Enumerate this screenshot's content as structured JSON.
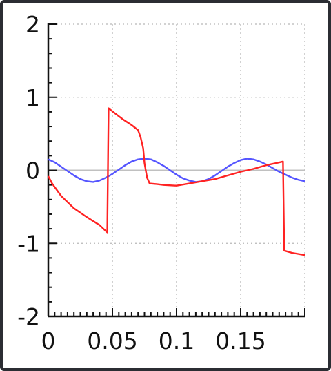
{
  "chart_data": {
    "type": "line",
    "title": "",
    "xlabel": "",
    "ylabel": "",
    "xlim": [
      0,
      0.2
    ],
    "ylim": [
      -2,
      2
    ],
    "grid": true,
    "legend": "none",
    "x_ticks": [
      0,
      0.05,
      0.1,
      0.15
    ],
    "x_tick_labels": [
      "0",
      "0.05",
      "0.1",
      "0.15"
    ],
    "y_ticks": [
      -2,
      -1,
      0,
      1,
      2
    ],
    "y_tick_labels": [
      "-2",
      "-1",
      "0",
      "1",
      "2"
    ],
    "reference_line": {
      "y": 0,
      "color": "#c0c0c0"
    },
    "series": [
      {
        "color": "#5555ff",
        "points": [
          [
            0,
            0.15
          ],
          [
            0.005,
            0.11
          ],
          [
            0.01,
            0.05
          ],
          [
            0.015,
            -0.01
          ],
          [
            0.02,
            -0.07
          ],
          [
            0.025,
            -0.12
          ],
          [
            0.03,
            -0.15
          ],
          [
            0.035,
            -0.16
          ],
          [
            0.04,
            -0.14
          ],
          [
            0.045,
            -0.1
          ],
          [
            0.05,
            -0.05
          ],
          [
            0.055,
            0.01
          ],
          [
            0.06,
            0.07
          ],
          [
            0.065,
            0.12
          ],
          [
            0.07,
            0.15
          ],
          [
            0.075,
            0.16
          ],
          [
            0.08,
            0.15
          ],
          [
            0.085,
            0.11
          ],
          [
            0.09,
            0.06
          ],
          [
            0.095,
            0.0
          ],
          [
            0.1,
            -0.06
          ],
          [
            0.105,
            -0.11
          ],
          [
            0.11,
            -0.14
          ],
          [
            0.115,
            -0.16
          ],
          [
            0.12,
            -0.15
          ],
          [
            0.125,
            -0.12
          ],
          [
            0.13,
            -0.07
          ],
          [
            0.135,
            -0.01
          ],
          [
            0.14,
            0.05
          ],
          [
            0.145,
            0.1
          ],
          [
            0.15,
            0.14
          ],
          [
            0.155,
            0.16
          ],
          [
            0.16,
            0.15
          ],
          [
            0.165,
            0.12
          ],
          [
            0.17,
            0.08
          ],
          [
            0.175,
            0.03
          ],
          [
            0.18,
            -0.02
          ],
          [
            0.185,
            -0.06
          ],
          [
            0.19,
            -0.1
          ],
          [
            0.195,
            -0.13
          ],
          [
            0.2,
            -0.15
          ]
        ]
      },
      {
        "color": "#ff2222",
        "points": [
          [
            0,
            -0.08
          ],
          [
            0.003,
            -0.18
          ],
          [
            0.01,
            -0.35
          ],
          [
            0.02,
            -0.52
          ],
          [
            0.03,
            -0.64
          ],
          [
            0.04,
            -0.75
          ],
          [
            0.046,
            -0.85
          ],
          [
            0.047,
            0.85
          ],
          [
            0.052,
            0.78
          ],
          [
            0.058,
            0.7
          ],
          [
            0.065,
            0.62
          ],
          [
            0.07,
            0.55
          ],
          [
            0.072,
            0.45
          ],
          [
            0.074,
            0.3
          ],
          [
            0.075,
            0.1
          ],
          [
            0.077,
            -0.1
          ],
          [
            0.079,
            -0.18
          ],
          [
            0.085,
            -0.19
          ],
          [
            0.09,
            -0.2
          ],
          [
            0.1,
            -0.21
          ],
          [
            0.11,
            -0.18
          ],
          [
            0.12,
            -0.15
          ],
          [
            0.13,
            -0.12
          ],
          [
            0.14,
            -0.07
          ],
          [
            0.15,
            -0.02
          ],
          [
            0.16,
            0.02
          ],
          [
            0.17,
            0.07
          ],
          [
            0.178,
            0.1
          ],
          [
            0.183,
            0.12
          ],
          [
            0.184,
            -1.1
          ],
          [
            0.19,
            -1.13
          ],
          [
            0.2,
            -1.16
          ]
        ]
      }
    ]
  }
}
